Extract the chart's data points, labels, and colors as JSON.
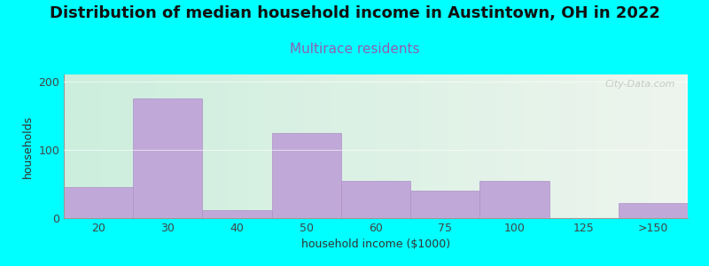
{
  "title": "Distribution of median household income in Austintown, OH in 2022",
  "subtitle": "Multirace residents",
  "xlabel": "household income ($1000)",
  "ylabel": "households",
  "background_color": "#00FFFF",
  "plot_bg_color_left": "#cceedd",
  "plot_bg_color_right": "#eef5ee",
  "bar_color": "#c0a8d8",
  "bar_edge_color": "#b090c8",
  "categories": [
    "20",
    "30",
    "40",
    "50",
    "60",
    "75",
    "100",
    "125",
    ">150"
  ],
  "values": [
    45,
    175,
    12,
    125,
    55,
    40,
    55,
    0,
    22
  ],
  "ylim": [
    0,
    210
  ],
  "yticks": [
    0,
    100,
    200
  ],
  "title_fontsize": 13,
  "subtitle_fontsize": 11,
  "subtitle_color": "#9060b0",
  "axis_label_fontsize": 9,
  "tick_fontsize": 9,
  "watermark": "City-Data.com"
}
